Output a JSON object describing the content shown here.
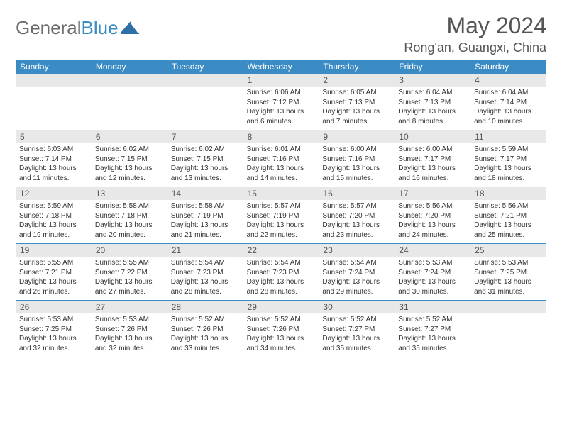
{
  "brand": {
    "part1": "General",
    "part2": "Blue"
  },
  "title": "May 2024",
  "location": "Rong'an, Guangxi, China",
  "colors": {
    "header_bg": "#3b8bc4",
    "daynum_bg": "#e8e8e8",
    "text": "#333333",
    "title": "#555555"
  },
  "day_names": [
    "Sunday",
    "Monday",
    "Tuesday",
    "Wednesday",
    "Thursday",
    "Friday",
    "Saturday"
  ],
  "weeks": [
    [
      {
        "n": "",
        "lines": [
          "",
          "",
          "",
          ""
        ]
      },
      {
        "n": "",
        "lines": [
          "",
          "",
          "",
          ""
        ]
      },
      {
        "n": "",
        "lines": [
          "",
          "",
          "",
          ""
        ]
      },
      {
        "n": "1",
        "lines": [
          "Sunrise: 6:06 AM",
          "Sunset: 7:12 PM",
          "Daylight: 13 hours",
          "and 6 minutes."
        ]
      },
      {
        "n": "2",
        "lines": [
          "Sunrise: 6:05 AM",
          "Sunset: 7:13 PM",
          "Daylight: 13 hours",
          "and 7 minutes."
        ]
      },
      {
        "n": "3",
        "lines": [
          "Sunrise: 6:04 AM",
          "Sunset: 7:13 PM",
          "Daylight: 13 hours",
          "and 8 minutes."
        ]
      },
      {
        "n": "4",
        "lines": [
          "Sunrise: 6:04 AM",
          "Sunset: 7:14 PM",
          "Daylight: 13 hours",
          "and 10 minutes."
        ]
      }
    ],
    [
      {
        "n": "5",
        "lines": [
          "Sunrise: 6:03 AM",
          "Sunset: 7:14 PM",
          "Daylight: 13 hours",
          "and 11 minutes."
        ]
      },
      {
        "n": "6",
        "lines": [
          "Sunrise: 6:02 AM",
          "Sunset: 7:15 PM",
          "Daylight: 13 hours",
          "and 12 minutes."
        ]
      },
      {
        "n": "7",
        "lines": [
          "Sunrise: 6:02 AM",
          "Sunset: 7:15 PM",
          "Daylight: 13 hours",
          "and 13 minutes."
        ]
      },
      {
        "n": "8",
        "lines": [
          "Sunrise: 6:01 AM",
          "Sunset: 7:16 PM",
          "Daylight: 13 hours",
          "and 14 minutes."
        ]
      },
      {
        "n": "9",
        "lines": [
          "Sunrise: 6:00 AM",
          "Sunset: 7:16 PM",
          "Daylight: 13 hours",
          "and 15 minutes."
        ]
      },
      {
        "n": "10",
        "lines": [
          "Sunrise: 6:00 AM",
          "Sunset: 7:17 PM",
          "Daylight: 13 hours",
          "and 16 minutes."
        ]
      },
      {
        "n": "11",
        "lines": [
          "Sunrise: 5:59 AM",
          "Sunset: 7:17 PM",
          "Daylight: 13 hours",
          "and 18 minutes."
        ]
      }
    ],
    [
      {
        "n": "12",
        "lines": [
          "Sunrise: 5:59 AM",
          "Sunset: 7:18 PM",
          "Daylight: 13 hours",
          "and 19 minutes."
        ]
      },
      {
        "n": "13",
        "lines": [
          "Sunrise: 5:58 AM",
          "Sunset: 7:18 PM",
          "Daylight: 13 hours",
          "and 20 minutes."
        ]
      },
      {
        "n": "14",
        "lines": [
          "Sunrise: 5:58 AM",
          "Sunset: 7:19 PM",
          "Daylight: 13 hours",
          "and 21 minutes."
        ]
      },
      {
        "n": "15",
        "lines": [
          "Sunrise: 5:57 AM",
          "Sunset: 7:19 PM",
          "Daylight: 13 hours",
          "and 22 minutes."
        ]
      },
      {
        "n": "16",
        "lines": [
          "Sunrise: 5:57 AM",
          "Sunset: 7:20 PM",
          "Daylight: 13 hours",
          "and 23 minutes."
        ]
      },
      {
        "n": "17",
        "lines": [
          "Sunrise: 5:56 AM",
          "Sunset: 7:20 PM",
          "Daylight: 13 hours",
          "and 24 minutes."
        ]
      },
      {
        "n": "18",
        "lines": [
          "Sunrise: 5:56 AM",
          "Sunset: 7:21 PM",
          "Daylight: 13 hours",
          "and 25 minutes."
        ]
      }
    ],
    [
      {
        "n": "19",
        "lines": [
          "Sunrise: 5:55 AM",
          "Sunset: 7:21 PM",
          "Daylight: 13 hours",
          "and 26 minutes."
        ]
      },
      {
        "n": "20",
        "lines": [
          "Sunrise: 5:55 AM",
          "Sunset: 7:22 PM",
          "Daylight: 13 hours",
          "and 27 minutes."
        ]
      },
      {
        "n": "21",
        "lines": [
          "Sunrise: 5:54 AM",
          "Sunset: 7:23 PM",
          "Daylight: 13 hours",
          "and 28 minutes."
        ]
      },
      {
        "n": "22",
        "lines": [
          "Sunrise: 5:54 AM",
          "Sunset: 7:23 PM",
          "Daylight: 13 hours",
          "and 28 minutes."
        ]
      },
      {
        "n": "23",
        "lines": [
          "Sunrise: 5:54 AM",
          "Sunset: 7:24 PM",
          "Daylight: 13 hours",
          "and 29 minutes."
        ]
      },
      {
        "n": "24",
        "lines": [
          "Sunrise: 5:53 AM",
          "Sunset: 7:24 PM",
          "Daylight: 13 hours",
          "and 30 minutes."
        ]
      },
      {
        "n": "25",
        "lines": [
          "Sunrise: 5:53 AM",
          "Sunset: 7:25 PM",
          "Daylight: 13 hours",
          "and 31 minutes."
        ]
      }
    ],
    [
      {
        "n": "26",
        "lines": [
          "Sunrise: 5:53 AM",
          "Sunset: 7:25 PM",
          "Daylight: 13 hours",
          "and 32 minutes."
        ]
      },
      {
        "n": "27",
        "lines": [
          "Sunrise: 5:53 AM",
          "Sunset: 7:26 PM",
          "Daylight: 13 hours",
          "and 32 minutes."
        ]
      },
      {
        "n": "28",
        "lines": [
          "Sunrise: 5:52 AM",
          "Sunset: 7:26 PM",
          "Daylight: 13 hours",
          "and 33 minutes."
        ]
      },
      {
        "n": "29",
        "lines": [
          "Sunrise: 5:52 AM",
          "Sunset: 7:26 PM",
          "Daylight: 13 hours",
          "and 34 minutes."
        ]
      },
      {
        "n": "30",
        "lines": [
          "Sunrise: 5:52 AM",
          "Sunset: 7:27 PM",
          "Daylight: 13 hours",
          "and 35 minutes."
        ]
      },
      {
        "n": "31",
        "lines": [
          "Sunrise: 5:52 AM",
          "Sunset: 7:27 PM",
          "Daylight: 13 hours",
          "and 35 minutes."
        ]
      },
      {
        "n": "",
        "lines": [
          "",
          "",
          "",
          ""
        ]
      }
    ]
  ]
}
